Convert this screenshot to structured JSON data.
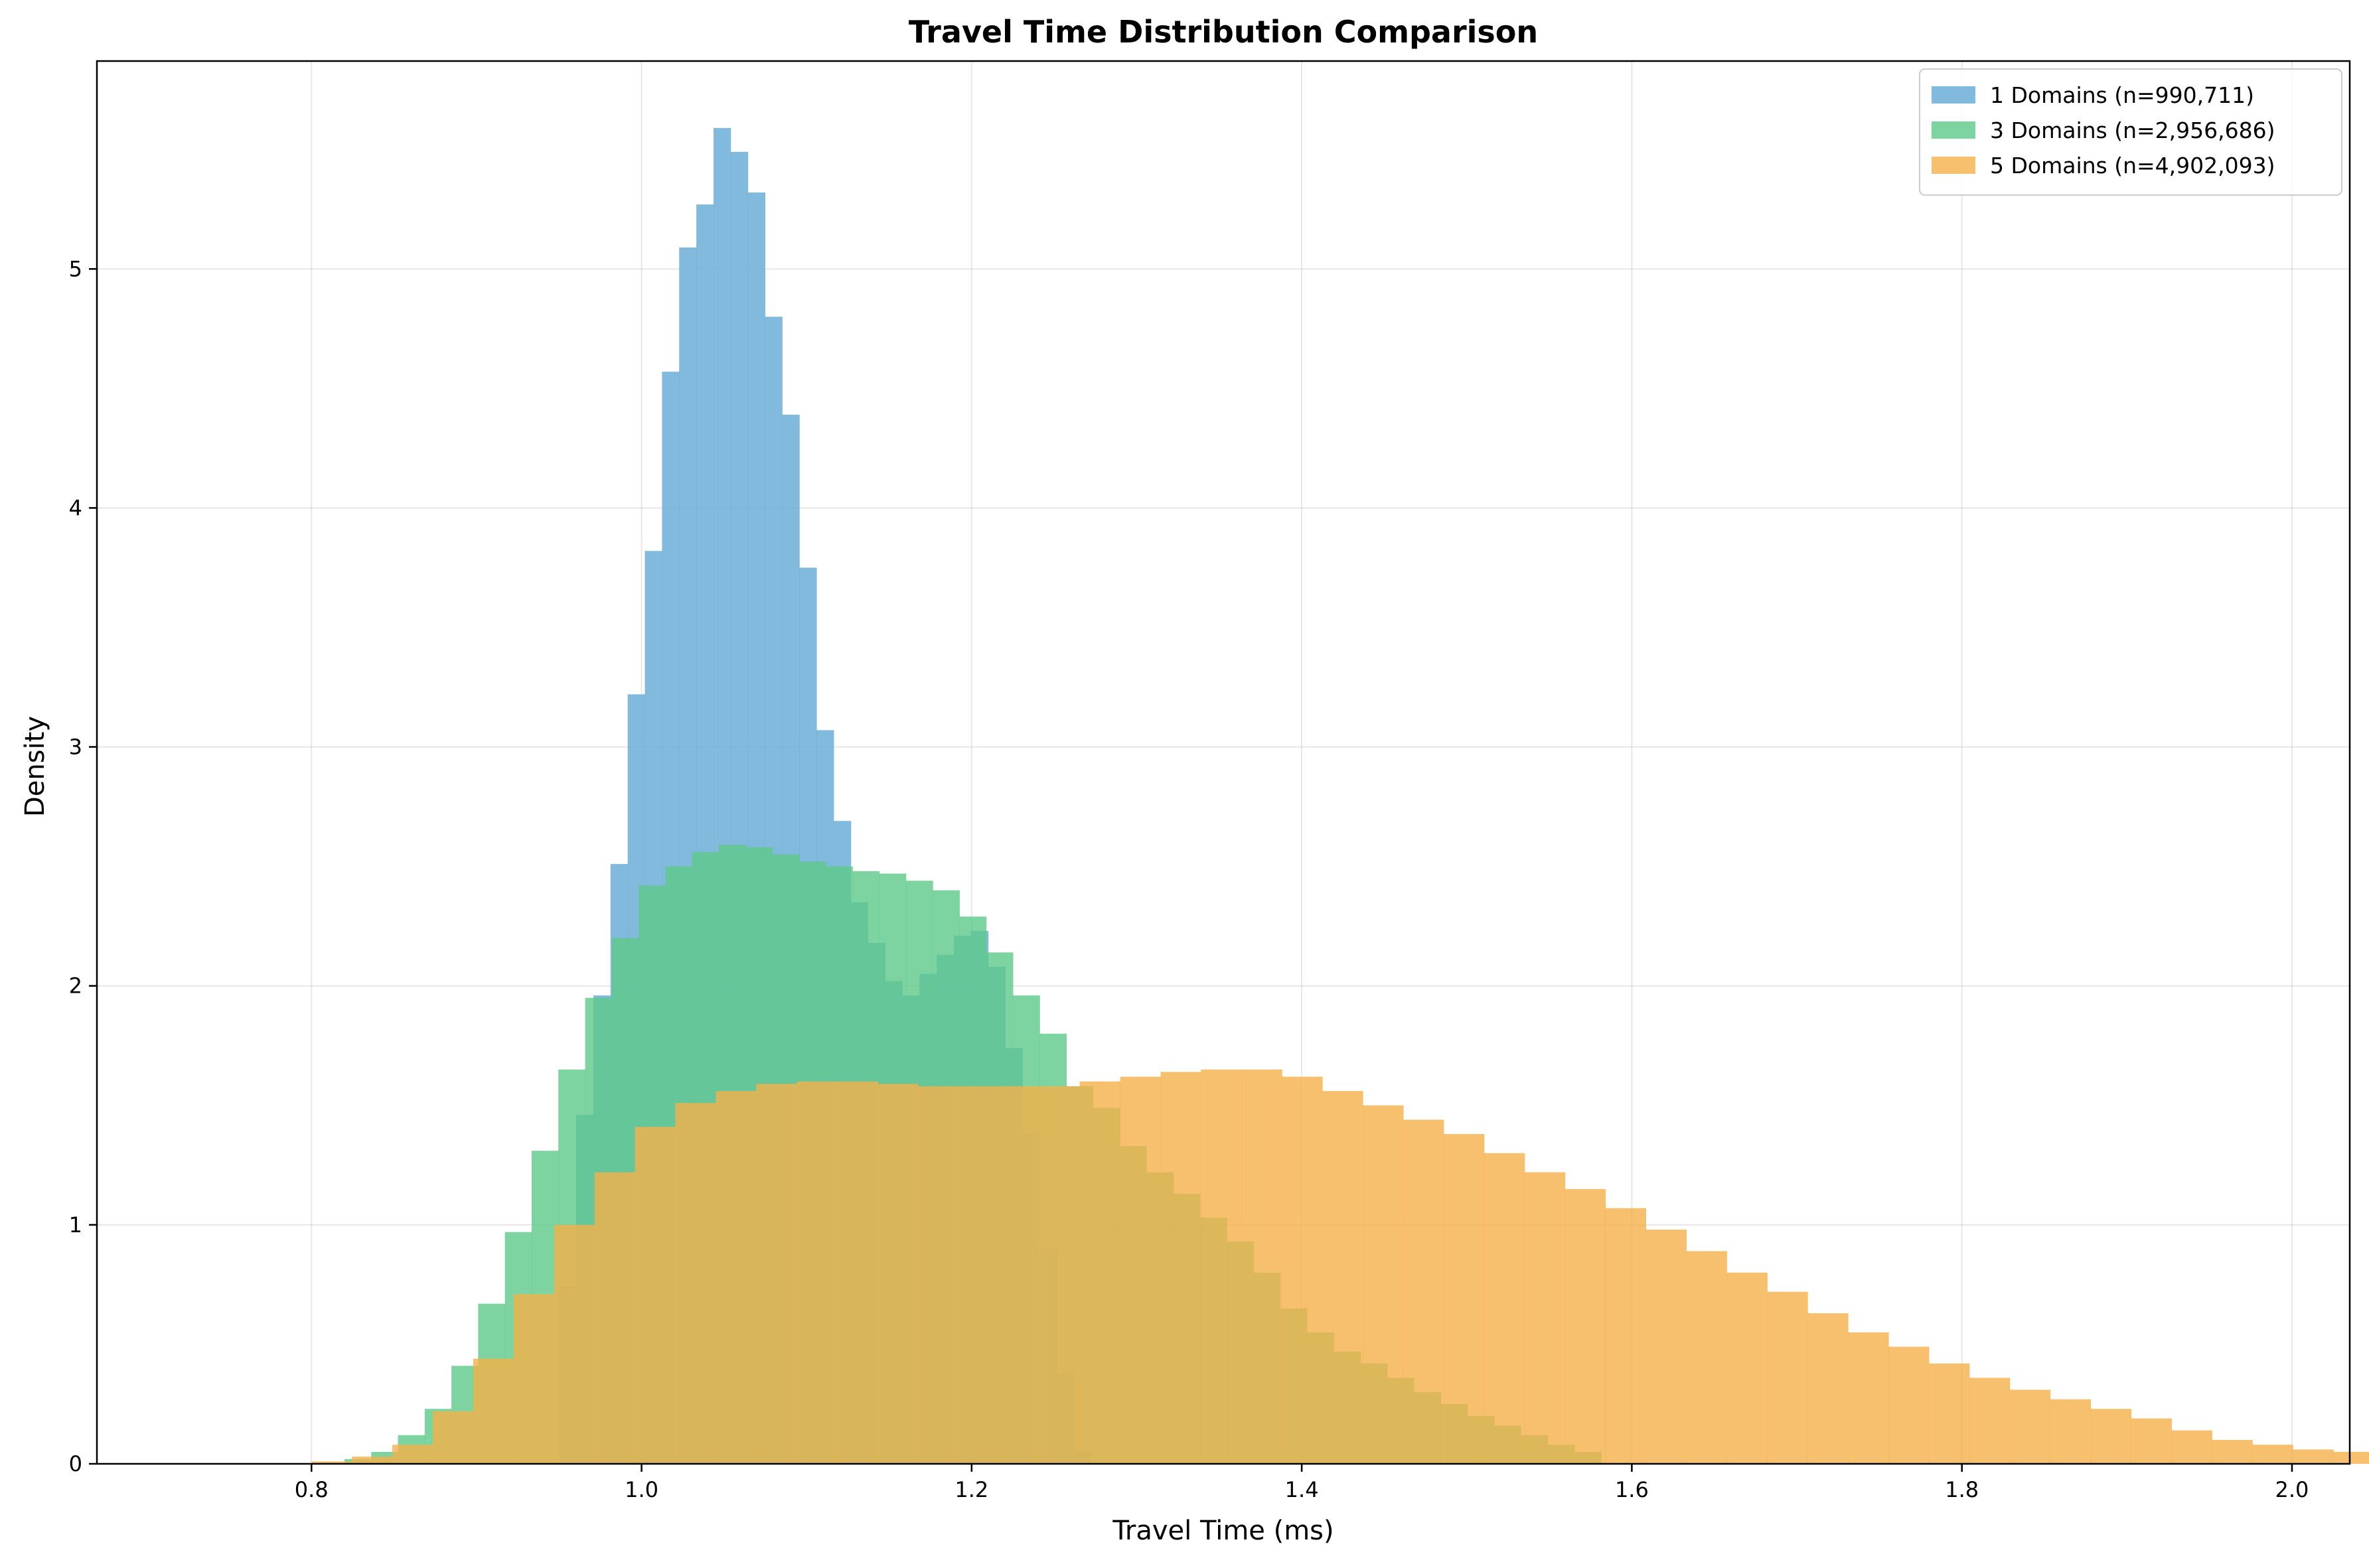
{
  "chart_data": {
    "type": "histogram",
    "title": "Travel Time Distribution Comparison",
    "xlabel": "Travel Time (ms)",
    "ylabel": "Density",
    "xlim": [
      0.67,
      2.035
    ],
    "ylim": [
      0,
      5.87
    ],
    "xticks": [
      0.8,
      1.0,
      1.2,
      1.4,
      1.6,
      1.8,
      2.0
    ],
    "xtick_labels": [
      "0.8",
      "1.0",
      "1.2",
      "1.4",
      "1.6",
      "1.8",
      "2.0"
    ],
    "yticks": [
      0,
      1,
      2,
      3,
      4,
      5
    ],
    "ytick_labels": [
      "0",
      "1",
      "2",
      "3",
      "4",
      "5"
    ],
    "grid": true,
    "legend_position": "top-right",
    "series": [
      {
        "name": "1 Domains (n=990,711)",
        "color": "#6baed6",
        "alpha": 0.85,
        "bin_start": 0.95,
        "bin_width": 0.0104,
        "values": [
          0.74,
          1.46,
          1.96,
          2.51,
          3.22,
          3.82,
          4.57,
          5.09,
          5.27,
          5.59,
          5.49,
          5.32,
          4.8,
          4.39,
          3.75,
          3.07,
          2.69,
          2.35,
          2.18,
          2.02,
          1.96,
          2.05,
          2.13,
          2.21,
          2.23,
          2.08,
          1.74,
          1.38,
          0.9,
          0.38,
          0.05
        ]
      },
      {
        "name": "3 Domains (n=2,956,686)",
        "color": "#5ec98a",
        "alpha": 0.8,
        "bin_start": 0.82,
        "bin_width": 0.0162,
        "values": [
          0.02,
          0.05,
          0.12,
          0.23,
          0.41,
          0.67,
          0.97,
          1.31,
          1.65,
          1.95,
          2.2,
          2.42,
          2.5,
          2.56,
          2.59,
          2.58,
          2.55,
          2.52,
          2.5,
          2.48,
          2.47,
          2.44,
          2.4,
          2.29,
          2.14,
          1.96,
          1.8,
          1.58,
          1.49,
          1.33,
          1.22,
          1.13,
          1.03,
          0.93,
          0.8,
          0.65,
          0.55,
          0.47,
          0.42,
          0.36,
          0.3,
          0.25,
          0.2,
          0.16,
          0.12,
          0.08,
          0.05
        ]
      },
      {
        "name": "5 Domains (n=4,902,093)",
        "color": "#f5b04a",
        "alpha": 0.8,
        "bin_start": 0.8,
        "bin_width": 0.0245,
        "values": [
          0.01,
          0.03,
          0.08,
          0.22,
          0.44,
          0.71,
          1.0,
          1.22,
          1.41,
          1.51,
          1.56,
          1.59,
          1.6,
          1.6,
          1.59,
          1.58,
          1.58,
          1.58,
          1.58,
          1.6,
          1.62,
          1.64,
          1.65,
          1.65,
          1.62,
          1.56,
          1.5,
          1.44,
          1.38,
          1.3,
          1.22,
          1.15,
          1.07,
          0.98,
          0.89,
          0.8,
          0.72,
          0.63,
          0.55,
          0.49,
          0.42,
          0.36,
          0.31,
          0.27,
          0.23,
          0.19,
          0.14,
          0.1,
          0.08,
          0.06,
          0.05,
          0.04,
          0.03
        ]
      }
    ]
  }
}
